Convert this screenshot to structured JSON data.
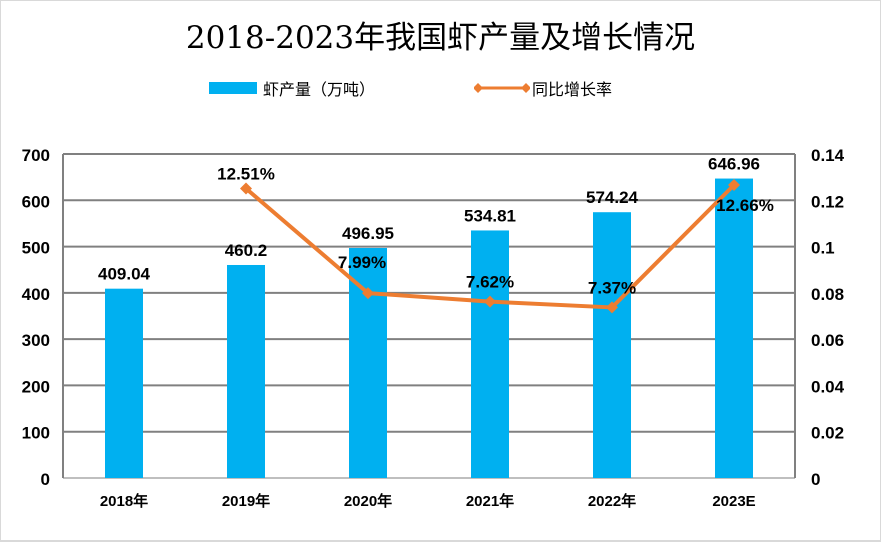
{
  "chart_data": {
    "type": "bar+line",
    "title": "2018-2023年我国虾产量及增长情况",
    "categories": [
      "2018年",
      "2019年",
      "2020年",
      "2021年",
      "2022年",
      "2023E"
    ],
    "series": [
      {
        "name": "虾产量（万吨）",
        "type": "bar",
        "axis": "left",
        "color": "#00b0f0",
        "values": [
          409.04,
          460.2,
          496.95,
          534.81,
          574.24,
          646.96
        ],
        "labels": [
          "409.04",
          "460.2",
          "496.95",
          "534.81",
          "574.24",
          "646.96"
        ]
      },
      {
        "name": "同比增长率",
        "type": "line",
        "axis": "right",
        "color": "#ed7d31",
        "marker": "diamond",
        "values": [
          null,
          0.1251,
          0.0799,
          0.0762,
          0.0737,
          0.1266
        ],
        "labels": [
          null,
          "12.51%",
          "7.99%",
          "7.62%",
          "7.37%",
          "12.66%"
        ]
      }
    ],
    "y_left": {
      "min": 0,
      "max": 700,
      "step": 100,
      "ticks": [
        "0",
        "100",
        "200",
        "300",
        "400",
        "500",
        "600",
        "700"
      ]
    },
    "y_right": {
      "min": 0,
      "max": 0.14,
      "step": 0.02,
      "ticks": [
        "0",
        "0.02",
        "0.04",
        "0.06",
        "0.08",
        "0.1",
        "0.12",
        "0.14"
      ]
    },
    "xlabel": "",
    "ylabel": "",
    "grid": true,
    "legend_position": "top-center",
    "colors": {
      "bar": "#00b0f0",
      "line": "#ed7d31",
      "grid": "#808080",
      "text": "#000000"
    }
  }
}
